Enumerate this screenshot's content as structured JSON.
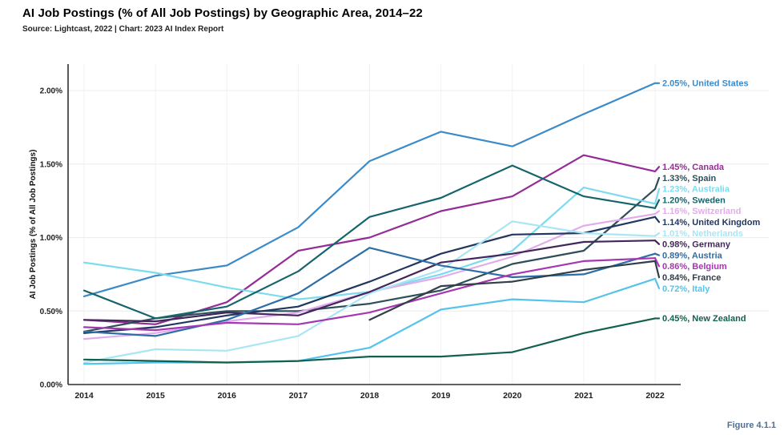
{
  "header": {
    "title": "AI Job Postings (% of All Job Postings) by Geographic Area, 2014–22",
    "source": "Source: Lightcast, 2022 | Chart: 2023 AI Index Report"
  },
  "footer": {
    "figure_caption": "Figure 4.1.1"
  },
  "colors": {
    "axis": "#2f2f2f",
    "grid_horizontal": "#ececec",
    "grid_vertical": "#f2f2f2",
    "tick_text": "#1f1f1f",
    "figure_caption": "#4e6f96"
  },
  "chart_data": {
    "type": "line",
    "x": [
      2014,
      2015,
      2016,
      2017,
      2018,
      2019,
      2020,
      2021,
      2022
    ],
    "xtick_labels": [
      "2014",
      "2015",
      "2016",
      "2017",
      "2018",
      "2019",
      "2020",
      "2021",
      "2022"
    ],
    "xlabel": "",
    "ylabel": "AI Job Postings (% of All Job Postings)",
    "ylim": [
      0,
      2.2
    ],
    "yticks": [
      0,
      0.5,
      1.0,
      1.5,
      2.0
    ],
    "ytick_labels": [
      "0.00%",
      "0.50%",
      "1.00%",
      "1.50%",
      "2.00%"
    ],
    "grid": true,
    "legend_position": "line-end-labels-right",
    "series": [
      {
        "name": "United States",
        "label": "2.05%, United States",
        "color": "#3c8bc9",
        "values": [
          0.6,
          0.74,
          0.81,
          1.07,
          1.52,
          1.72,
          1.62,
          1.84,
          2.05
        ]
      },
      {
        "name": "Canada",
        "label": "1.45%, Canada",
        "color": "#952c96",
        "values": [
          0.44,
          0.41,
          0.56,
          0.91,
          1.0,
          1.18,
          1.28,
          1.56,
          1.45
        ]
      },
      {
        "name": "Spain",
        "label": "1.33%, Spain",
        "color": "#2e4f5a",
        "values": [
          0.36,
          0.45,
          0.5,
          0.5,
          0.55,
          0.64,
          0.82,
          0.91,
          1.33
        ]
      },
      {
        "name": "Australia",
        "label": "1.23%, Australia",
        "color": "#7cdbee",
        "values": [
          0.83,
          0.76,
          0.66,
          0.58,
          0.63,
          0.75,
          0.91,
          1.34,
          1.23
        ]
      },
      {
        "name": "Sweden",
        "label": "1.20%, Sweden",
        "color": "#16646c",
        "values": [
          0.64,
          0.45,
          0.53,
          0.77,
          1.14,
          1.27,
          1.49,
          1.28,
          1.2
        ]
      },
      {
        "name": "Switzerland",
        "label": "1.16%, Switzerland",
        "color": "#e2abec",
        "values": [
          0.31,
          0.35,
          0.43,
          0.49,
          0.63,
          0.73,
          0.87,
          1.08,
          1.16
        ]
      },
      {
        "name": "United Kingdom",
        "label": "1.14%, United Kingdom",
        "color": "#223760",
        "values": [
          0.35,
          0.39,
          0.47,
          0.53,
          0.7,
          0.89,
          1.02,
          1.03,
          1.14
        ]
      },
      {
        "name": "Netherlands",
        "label": "1.01%, Netherlands",
        "color": "#a9e6f4",
        "values": [
          0.15,
          0.24,
          0.23,
          0.33,
          0.62,
          0.78,
          1.11,
          1.03,
          1.01
        ]
      },
      {
        "name": "Germany",
        "label": "0.98%, Germany",
        "color": "#42275b",
        "values": [
          0.44,
          0.43,
          0.49,
          0.47,
          0.63,
          0.83,
          0.89,
          0.97,
          0.98
        ]
      },
      {
        "name": "Austria",
        "label": "0.89%, Austria",
        "color": "#2e6ea6",
        "values": [
          0.36,
          0.33,
          0.44,
          0.62,
          0.93,
          0.81,
          0.73,
          0.75,
          0.89
        ]
      },
      {
        "name": "Belgium",
        "label": "0.86%, Belgium",
        "color": "#a636b2",
        "values": [
          0.39,
          0.37,
          0.42,
          0.41,
          0.49,
          0.62,
          0.75,
          0.84,
          0.86
        ]
      },
      {
        "name": "France",
        "label": "0.84%, France",
        "color": "#323e48",
        "values": [
          null,
          null,
          null,
          null,
          0.44,
          0.67,
          0.7,
          0.78,
          0.84
        ]
      },
      {
        "name": "Italy",
        "label": "0.72%, Italy",
        "color": "#55c3ec",
        "values": [
          0.14,
          0.15,
          0.15,
          0.16,
          0.25,
          0.51,
          0.58,
          0.56,
          0.72
        ]
      },
      {
        "name": "New Zealand",
        "label": "0.45%, New Zealand",
        "color": "#13604f",
        "values": [
          0.17,
          0.16,
          0.15,
          0.16,
          0.19,
          0.19,
          0.22,
          0.35,
          0.45
        ]
      }
    ]
  }
}
